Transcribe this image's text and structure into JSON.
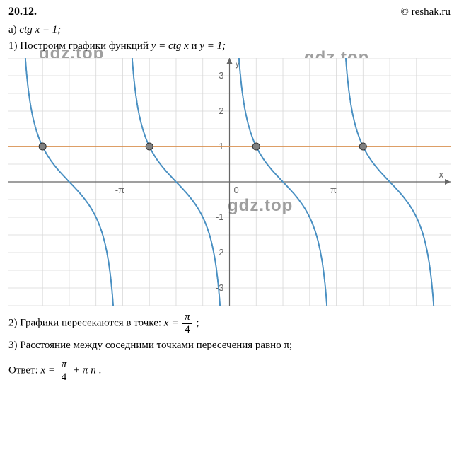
{
  "header": {
    "problem_number": "20.12.",
    "source": "© reshak.ru"
  },
  "part_a": {
    "label": "а)",
    "equation": "ctg x = 1;"
  },
  "step1": {
    "number": "1)",
    "text_before": "Построим графики функций ",
    "func1": "y = ctg x",
    "connector": " и ",
    "func2": "y = 1;"
  },
  "chart": {
    "background_color": "#ffffff",
    "grid_color": "#d8d8d8",
    "axis_color": "#666666",
    "axis_label_color": "#666666",
    "curve_color": "#4a90c2",
    "line_color": "#d89050",
    "point_fill": "#808080",
    "point_stroke": "#333333",
    "x_axis_label": "x",
    "y_axis_label": "y",
    "x_ticks": [
      {
        "pos": -3.1416,
        "label": "-π"
      },
      {
        "pos": 0,
        "label": "0"
      },
      {
        "pos": 3.1416,
        "label": "π"
      }
    ],
    "y_ticks": [
      {
        "pos": 1,
        "label": "1"
      },
      {
        "pos": 2,
        "label": "2"
      },
      {
        "pos": 3,
        "label": "3"
      },
      {
        "pos": -1,
        "label": "-1"
      },
      {
        "pos": -2,
        "label": "-2"
      },
      {
        "pos": -3,
        "label": "-3"
      }
    ],
    "xlim": [
      -6.5,
      6.5
    ],
    "ylim": [
      -3.5,
      3.5
    ],
    "horizontal_line_y": 1,
    "curve_centers": [
      -6.2832,
      -3.1416,
      0,
      3.1416,
      6.2832
    ],
    "intersection_points": [
      {
        "x": -5.4978,
        "y": 1
      },
      {
        "x": -2.3562,
        "y": 1
      },
      {
        "x": 0.7854,
        "y": 1
      },
      {
        "x": 3.927,
        "y": 1
      }
    ],
    "point_radius": 5,
    "curve_width": 1.8,
    "line_width": 1.8,
    "grid_width": 0.8
  },
  "step2": {
    "number": "2)",
    "text_before": "Графики пересекаются в точке:  ",
    "var": "x = ",
    "frac_num": "π",
    "frac_den": "4",
    "suffix": ";"
  },
  "step3": {
    "number": "3)",
    "text": "Расстояние между соседними точками пересечения равно π;"
  },
  "answer": {
    "label": "Ответ:  ",
    "var": "x = ",
    "frac_num": "π",
    "frac_den": "4",
    "plus": " + π",
    "n": "n",
    "suffix": "."
  },
  "watermarks": {
    "wm1": "gdz.top",
    "wm2": "gdz.top",
    "wm3": "gdz.top"
  }
}
